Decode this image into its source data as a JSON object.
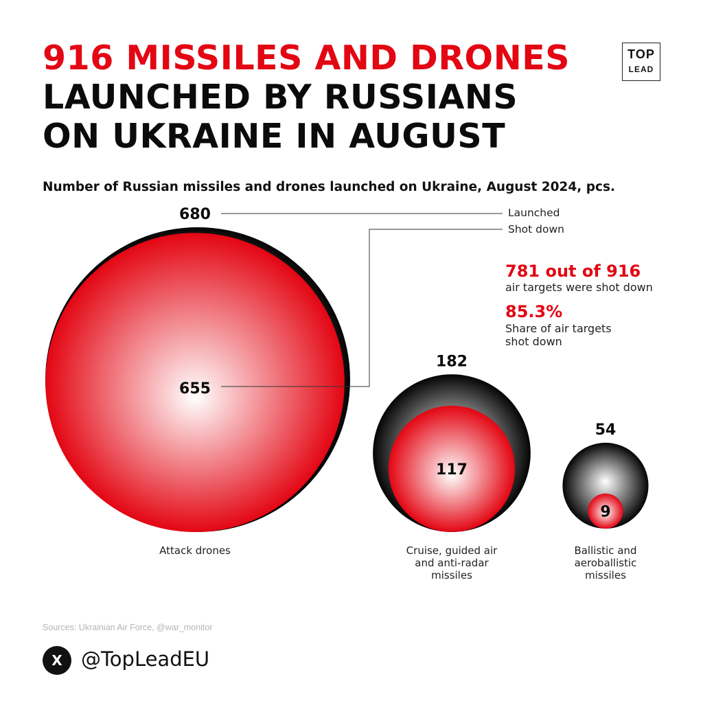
{
  "headline": {
    "line1": "916 MISSILES AND DRONES",
    "line2": "LAUNCHED BY RUSSIANS",
    "line3": "ON UKRAINE IN AUGUST"
  },
  "logo": {
    "line1": "TOP",
    "line2": "LEAD"
  },
  "subtitle": "Number of Russian missiles and drones launched on Ukraine, August 2024, pcs.",
  "legend": {
    "launched": "Launched",
    "shot_down": "Shot down"
  },
  "stats": {
    "shot_total": "781 out of 916",
    "shot_total_desc": "air targets were shot down",
    "share": "85.3%",
    "share_desc": "Share of air targets shot down"
  },
  "chart_data": {
    "type": "bubble",
    "categories": [
      "Attack drones",
      "Cruise, guided air and anti-radar missiles",
      "Ballistic and aeroballistic missiles"
    ],
    "series": [
      {
        "name": "Launched",
        "values": [
          680,
          182,
          54
        ]
      },
      {
        "name": "Shot down",
        "values": [
          655,
          117,
          9
        ]
      }
    ]
  },
  "category_labels": [
    [
      "Attack drones"
    ],
    [
      "Cruise, guided air",
      "and anti-radar",
      "missiles"
    ],
    [
      "Ballistic and",
      "aeroballistic",
      "missiles"
    ]
  ],
  "colors": {
    "accent": "#e30613",
    "dark": "#0b0b0b"
  },
  "sources": "Sources: Ukrainian Air Force, @war_monitor",
  "social": {
    "icon": "x-logo-icon",
    "glyph": "X",
    "handle": "@TopLeadEU"
  }
}
